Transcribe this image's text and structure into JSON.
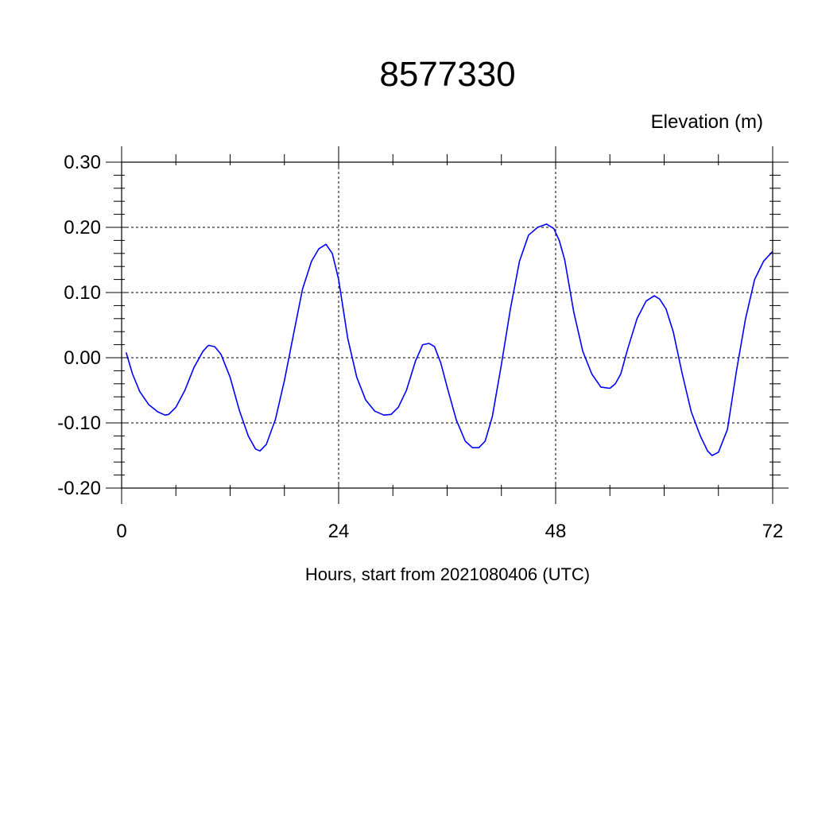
{
  "chart_data": {
    "type": "line",
    "title": "8577330",
    "ylabel": "Elevation (m)",
    "xlabel": "Hours, start from 2021080406 (UTC)",
    "xlim": [
      0,
      72
    ],
    "ylim": [
      -0.2,
      0.3
    ],
    "x_ticks": [
      0,
      24,
      48,
      72
    ],
    "x_tick_labels": [
      "0",
      "24",
      "48",
      "72"
    ],
    "y_ticks": [
      -0.2,
      -0.1,
      0.0,
      0.1,
      0.2,
      0.3
    ],
    "y_tick_labels": [
      "-0.20",
      "-0.10",
      "0.00",
      "0.10",
      "0.20",
      "0.30"
    ],
    "grid": true,
    "series_color": "#0000ff",
    "series": [
      {
        "x": [
          0.5,
          1.2,
          2,
          3,
          4,
          4.8,
          5.2,
          6,
          7,
          8,
          9,
          9.6,
          10.3,
          11,
          12,
          13,
          14,
          14.8,
          15.3,
          16,
          17,
          18,
          19,
          20,
          21,
          21.8,
          22.6,
          23.3,
          24,
          25,
          26,
          27,
          28,
          29,
          29.8,
          30.6,
          31.5,
          32.5,
          33.3,
          34,
          34.6,
          35.3,
          36,
          37,
          38,
          38.8,
          39.5,
          40.2,
          41,
          42,
          43,
          44,
          45,
          46,
          47,
          47.8,
          48.4,
          49,
          50,
          51,
          52,
          53,
          54,
          54.6,
          55.2,
          56,
          57,
          58,
          58.9,
          59.5,
          60.2,
          61,
          62,
          63,
          64,
          64.8,
          65.3,
          66,
          67,
          68,
          69,
          70,
          71,
          72
        ],
        "y": [
          0.008,
          -0.025,
          -0.052,
          -0.072,
          -0.083,
          -0.088,
          -0.087,
          -0.076,
          -0.05,
          -0.015,
          0.01,
          0.019,
          0.017,
          0.005,
          -0.03,
          -0.08,
          -0.12,
          -0.14,
          -0.143,
          -0.133,
          -0.095,
          -0.035,
          0.035,
          0.105,
          0.148,
          0.167,
          0.174,
          0.16,
          0.12,
          0.03,
          -0.03,
          -0.065,
          -0.082,
          -0.088,
          -0.087,
          -0.076,
          -0.05,
          -0.005,
          0.02,
          0.022,
          0.017,
          -0.008,
          -0.045,
          -0.095,
          -0.128,
          -0.138,
          -0.138,
          -0.128,
          -0.09,
          -0.01,
          0.075,
          0.148,
          0.188,
          0.2,
          0.205,
          0.198,
          0.18,
          0.15,
          0.07,
          0.01,
          -0.025,
          -0.045,
          -0.047,
          -0.04,
          -0.025,
          0.015,
          0.06,
          0.087,
          0.095,
          0.09,
          0.075,
          0.04,
          -0.025,
          -0.083,
          -0.12,
          -0.143,
          -0.15,
          -0.145,
          -0.11,
          -0.02,
          0.06,
          0.12,
          0.148,
          0.163
        ]
      }
    ]
  }
}
